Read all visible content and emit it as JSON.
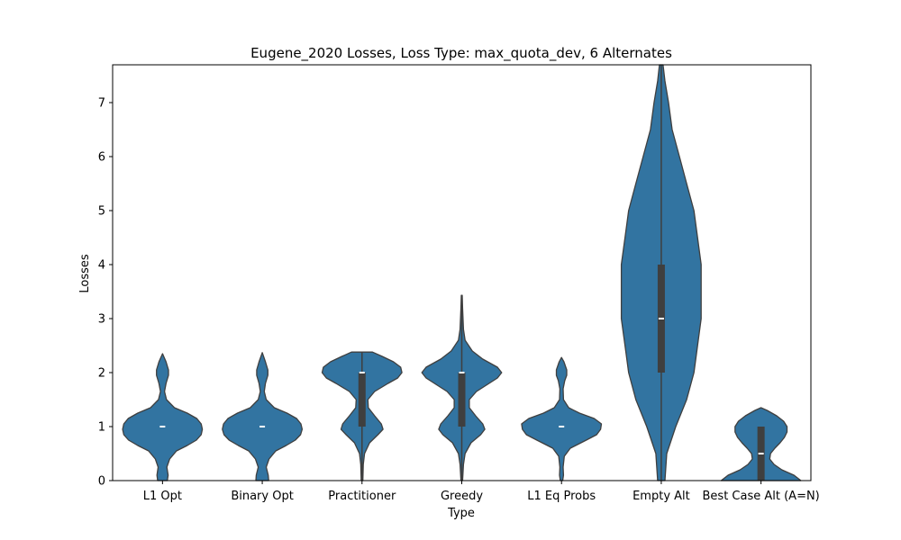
{
  "chart_data": {
    "type": "violin",
    "title": "Eugene_2020 Losses, Loss Type: max_quota_dev, 6 Alternates",
    "xlabel": "Type",
    "ylabel": "Losses",
    "ylim": [
      0,
      7.7
    ],
    "yticks": [
      0,
      1,
      2,
      3,
      4,
      5,
      6,
      7
    ],
    "grid": false,
    "categories": [
      "L1 Opt",
      "Binary Opt",
      "Practitioner",
      "Greedy",
      "L1 Eq Probs",
      "Empty Alt",
      "Best Case Alt (A=N)"
    ],
    "series": [
      {
        "category": "L1 Opt",
        "median": 1,
        "q1": 1,
        "q3": 1,
        "whisker_low": 1,
        "whisker_high": 1,
        "min": 0,
        "max": 2.35,
        "density": [
          [
            0,
            0.12
          ],
          [
            0.1,
            0.14
          ],
          [
            0.25,
            0.11
          ],
          [
            0.4,
            0.18
          ],
          [
            0.55,
            0.35
          ],
          [
            0.65,
            0.62
          ],
          [
            0.75,
            0.85
          ],
          [
            0.85,
            0.97
          ],
          [
            0.95,
            1.0
          ],
          [
            1.05,
            0.97
          ],
          [
            1.15,
            0.86
          ],
          [
            1.25,
            0.62
          ],
          [
            1.35,
            0.3
          ],
          [
            1.5,
            0.1
          ],
          [
            1.65,
            0.05
          ],
          [
            1.8,
            0.09
          ],
          [
            1.95,
            0.15
          ],
          [
            2.05,
            0.15
          ],
          [
            2.2,
            0.09
          ],
          [
            2.35,
            0.0
          ]
        ]
      },
      {
        "category": "Binary Opt",
        "median": 1,
        "q1": 1,
        "q3": 1,
        "whisker_low": 1,
        "whisker_high": 1,
        "min": 0,
        "max": 2.37,
        "density": [
          [
            0,
            0.16
          ],
          [
            0.1,
            0.15
          ],
          [
            0.25,
            0.1
          ],
          [
            0.4,
            0.17
          ],
          [
            0.55,
            0.34
          ],
          [
            0.65,
            0.6
          ],
          [
            0.75,
            0.83
          ],
          [
            0.85,
            0.96
          ],
          [
            0.95,
            1.0
          ],
          [
            1.05,
            0.97
          ],
          [
            1.15,
            0.86
          ],
          [
            1.25,
            0.62
          ],
          [
            1.35,
            0.3
          ],
          [
            1.5,
            0.1
          ],
          [
            1.65,
            0.05
          ],
          [
            1.8,
            0.08
          ],
          [
            1.95,
            0.14
          ],
          [
            2.05,
            0.14
          ],
          [
            2.2,
            0.08
          ],
          [
            2.37,
            0.0
          ]
        ]
      },
      {
        "category": "Practitioner",
        "median": 2,
        "q1": 1,
        "q3": 2,
        "whisker_low": 0,
        "whisker_high": 2.38,
        "min": 0,
        "max": 2.38,
        "density": [
          [
            0,
            0.02
          ],
          [
            0.3,
            0.03
          ],
          [
            0.5,
            0.06
          ],
          [
            0.7,
            0.18
          ],
          [
            0.85,
            0.38
          ],
          [
            0.95,
            0.5
          ],
          [
            1.05,
            0.46
          ],
          [
            1.2,
            0.3
          ],
          [
            1.35,
            0.15
          ],
          [
            1.5,
            0.14
          ],
          [
            1.65,
            0.3
          ],
          [
            1.8,
            0.62
          ],
          [
            1.9,
            0.85
          ],
          [
            2.0,
            0.95
          ],
          [
            2.1,
            0.92
          ],
          [
            2.2,
            0.75
          ],
          [
            2.3,
            0.48
          ],
          [
            2.38,
            0.25
          ]
        ]
      },
      {
        "category": "Greedy",
        "median": 2,
        "q1": 1,
        "q3": 2,
        "whisker_low": 0,
        "whisker_high": 3.43,
        "min": 0,
        "max": 3.43,
        "density": [
          [
            0,
            0.02
          ],
          [
            0.3,
            0.04
          ],
          [
            0.5,
            0.08
          ],
          [
            0.7,
            0.22
          ],
          [
            0.85,
            0.45
          ],
          [
            0.95,
            0.55
          ],
          [
            1.05,
            0.5
          ],
          [
            1.2,
            0.33
          ],
          [
            1.35,
            0.18
          ],
          [
            1.5,
            0.18
          ],
          [
            1.65,
            0.35
          ],
          [
            1.8,
            0.65
          ],
          [
            1.9,
            0.85
          ],
          [
            2.0,
            0.95
          ],
          [
            2.1,
            0.85
          ],
          [
            2.25,
            0.5
          ],
          [
            2.4,
            0.25
          ],
          [
            2.6,
            0.08
          ],
          [
            2.8,
            0.04
          ],
          [
            3.0,
            0.03
          ],
          [
            3.2,
            0.02
          ],
          [
            3.43,
            0.01
          ]
        ]
      },
      {
        "category": "L1 Eq Probs",
        "median": 1,
        "q1": 1,
        "q3": 1,
        "whisker_low": 1,
        "whisker_high": 1,
        "min": 0,
        "max": 2.28,
        "density": [
          [
            0,
            0.03
          ],
          [
            0.1,
            0.05
          ],
          [
            0.25,
            0.04
          ],
          [
            0.45,
            0.07
          ],
          [
            0.6,
            0.22
          ],
          [
            0.75,
            0.62
          ],
          [
            0.85,
            0.88
          ],
          [
            0.95,
            0.98
          ],
          [
            1.05,
            1.0
          ],
          [
            1.15,
            0.82
          ],
          [
            1.25,
            0.45
          ],
          [
            1.35,
            0.18
          ],
          [
            1.5,
            0.05
          ],
          [
            1.7,
            0.04
          ],
          [
            1.85,
            0.08
          ],
          [
            1.95,
            0.13
          ],
          [
            2.05,
            0.13
          ],
          [
            2.2,
            0.06
          ],
          [
            2.28,
            0.0
          ]
        ]
      },
      {
        "category": "Empty Alt",
        "median": 3,
        "q1": 2,
        "q3": 4,
        "whisker_low": 0,
        "whisker_high": 7.7,
        "min": 0,
        "max": 7.7,
        "density": [
          [
            0,
            0.01
          ],
          [
            0.5,
            0.015
          ],
          [
            1.0,
            0.04
          ],
          [
            1.5,
            0.07
          ],
          [
            2.0,
            0.09
          ],
          [
            2.5,
            0.1
          ],
          [
            3.0,
            0.11
          ],
          [
            3.5,
            0.11
          ],
          [
            4.0,
            0.11
          ],
          [
            4.5,
            0.1
          ],
          [
            5.0,
            0.09
          ],
          [
            5.5,
            0.07
          ],
          [
            6.0,
            0.05
          ],
          [
            6.5,
            0.03
          ],
          [
            7.0,
            0.02
          ],
          [
            7.4,
            0.01
          ],
          [
            7.7,
            0.005
          ]
        ]
      },
      {
        "category": "Best Case Alt (A=N)",
        "median": 0.5,
        "q1": 0,
        "q3": 1,
        "whisker_low": 0,
        "whisker_high": 1,
        "min": 0,
        "max": 1.35,
        "density": [
          [
            0,
            0.46
          ],
          [
            0.1,
            0.38
          ],
          [
            0.2,
            0.24
          ],
          [
            0.3,
            0.15
          ],
          [
            0.4,
            0.1
          ],
          [
            0.5,
            0.11
          ],
          [
            0.6,
            0.16
          ],
          [
            0.7,
            0.22
          ],
          [
            0.8,
            0.27
          ],
          [
            0.9,
            0.3
          ],
          [
            1.0,
            0.3
          ],
          [
            1.1,
            0.26
          ],
          [
            1.2,
            0.18
          ],
          [
            1.3,
            0.07
          ],
          [
            1.35,
            0.0
          ]
        ]
      }
    ],
    "colors": {
      "violin_fill": "#3274a1",
      "violin_edge": "#3f3f3f",
      "box": "#3f3f3f",
      "median": "#ffffff",
      "axes": "#000000"
    }
  }
}
